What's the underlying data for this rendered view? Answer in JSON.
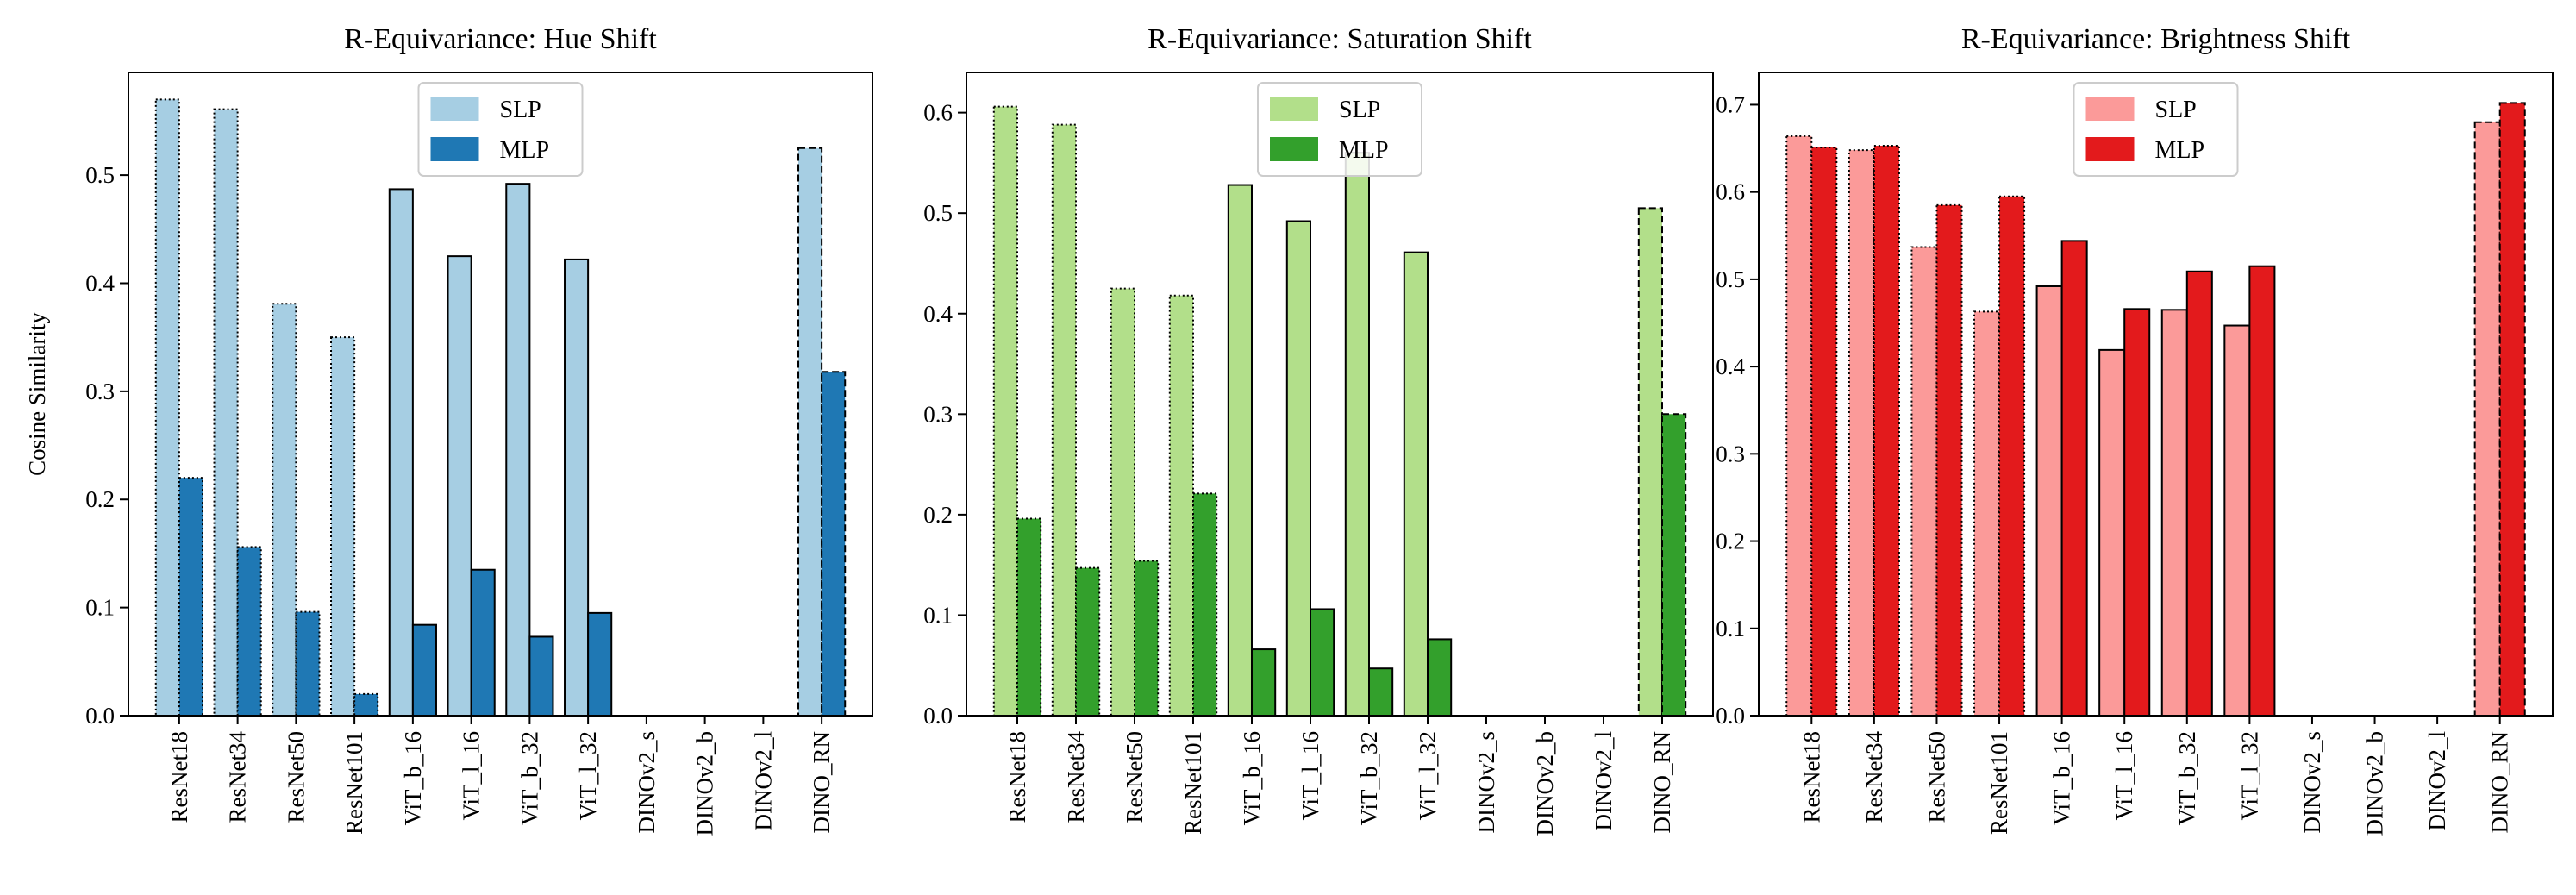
{
  "chart_data": [
    {
      "type": "bar",
      "title": "R-Equivariance: Hue Shift",
      "xlabel": "",
      "ylabel": "Cosine Similarity",
      "ylim": [
        0,
        0.595
      ],
      "yticks": [
        0.0,
        0.1,
        0.2,
        0.3,
        0.4,
        0.5
      ],
      "grid": false,
      "legend": "top-center",
      "categories": [
        "ResNet18",
        "ResNet34",
        "ResNet50",
        "ResNet101",
        "ViT_b_16",
        "ViT_l_16",
        "ViT_b_32",
        "ViT_l_32",
        "DINOv2_s",
        "DINOv2_b",
        "DINOv2_l",
        "DINO_RN"
      ],
      "bar_edge_styles": [
        "dotted",
        "dotted",
        "dotted",
        "dotted",
        "solid",
        "solid",
        "solid",
        "solid",
        "solid",
        "solid",
        "solid",
        "dashed"
      ],
      "series": [
        {
          "name": "SLP",
          "color": "#a6cee3",
          "values": [
            0.57,
            0.561,
            0.381,
            0.35,
            0.487,
            0.425,
            0.492,
            0.422,
            0.0,
            0.0,
            0.0,
            0.525
          ]
        },
        {
          "name": "MLP",
          "color": "#1f78b4",
          "values": [
            0.22,
            0.156,
            0.096,
            0.02,
            0.084,
            0.135,
            0.073,
            0.095,
            0.0,
            0.0,
            0.0,
            0.318
          ]
        }
      ]
    },
    {
      "type": "bar",
      "title": "R-Equivariance: Saturation Shift",
      "xlabel": "",
      "ylabel": "",
      "ylim": [
        0,
        0.64
      ],
      "yticks": [
        0.0,
        0.1,
        0.2,
        0.3,
        0.4,
        0.5,
        0.6
      ],
      "grid": false,
      "legend": "top-center",
      "categories": [
        "ResNet18",
        "ResNet34",
        "ResNet50",
        "ResNet101",
        "ViT_b_16",
        "ViT_l_16",
        "ViT_b_32",
        "ViT_l_32",
        "DINOv2_s",
        "DINOv2_b",
        "DINOv2_l",
        "DINO_RN"
      ],
      "bar_edge_styles": [
        "dotted",
        "dotted",
        "dotted",
        "dotted",
        "solid",
        "solid",
        "solid",
        "solid",
        "solid",
        "solid",
        "solid",
        "dashed"
      ],
      "series": [
        {
          "name": "SLP",
          "color": "#b2df8a",
          "values": [
            0.606,
            0.588,
            0.425,
            0.418,
            0.528,
            0.492,
            0.56,
            0.461,
            0.0,
            0.0,
            0.0,
            0.505
          ]
        },
        {
          "name": "MLP",
          "color": "#33a02c",
          "values": [
            0.196,
            0.147,
            0.154,
            0.221,
            0.066,
            0.106,
            0.047,
            0.076,
            0.0,
            0.0,
            0.0,
            0.3
          ]
        }
      ]
    },
    {
      "type": "bar",
      "title": "R-Equivariance: Brightness Shift",
      "xlabel": "",
      "ylabel": "",
      "ylim": [
        0,
        0.737
      ],
      "yticks": [
        0.0,
        0.1,
        0.2,
        0.3,
        0.4,
        0.5,
        0.6,
        0.7
      ],
      "grid": false,
      "legend": "top-center",
      "categories": [
        "ResNet18",
        "ResNet34",
        "ResNet50",
        "ResNet101",
        "ViT_b_16",
        "ViT_l_16",
        "ViT_b_32",
        "ViT_l_32",
        "DINOv2_s",
        "DINOv2_b",
        "DINOv2_l",
        "DINO_RN"
      ],
      "bar_edge_styles": [
        "dotted",
        "dotted",
        "dotted",
        "dotted",
        "solid",
        "solid",
        "solid",
        "solid",
        "solid",
        "solid",
        "solid",
        "dashed"
      ],
      "series": [
        {
          "name": "SLP",
          "color": "#fb9a99",
          "values": [
            0.664,
            0.648,
            0.537,
            0.463,
            0.492,
            0.419,
            0.465,
            0.447,
            0.0,
            0.0,
            0.0,
            0.68
          ]
        },
        {
          "name": "MLP",
          "color": "#e31a1c",
          "values": [
            0.651,
            0.653,
            0.585,
            0.595,
            0.544,
            0.466,
            0.509,
            0.515,
            0.0,
            0.0,
            0.0,
            0.702
          ]
        }
      ]
    }
  ]
}
